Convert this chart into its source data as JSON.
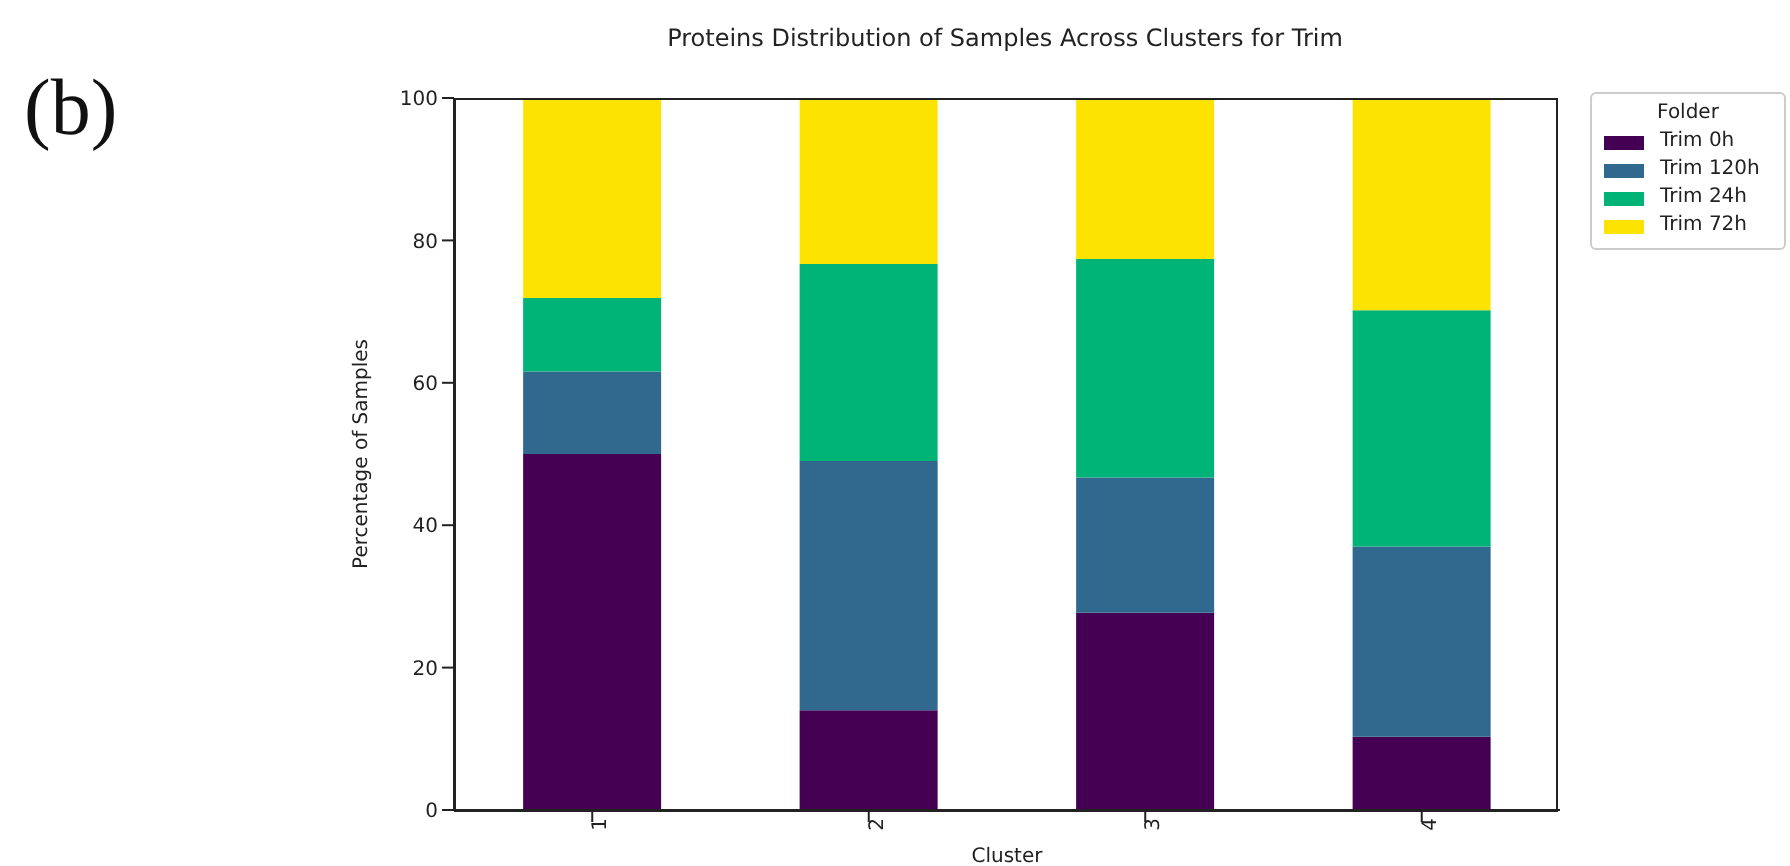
{
  "chart_data": {
    "type": "bar",
    "title": "Proteins Distribution of Samples Across Clusters for Trim",
    "xlabel": "Cluster",
    "ylabel": "Percentage of Samples",
    "legend_title": "Folder",
    "annotations": [
      "(b)"
    ],
    "categories": [
      "1",
      "2",
      "3",
      "4"
    ],
    "series": [
      {
        "name": "Trim 0h",
        "color": "#440154",
        "values": [
          50,
          14,
          27.7,
          10.3
        ]
      },
      {
        "name": "Trim 120h",
        "color": "#31688e",
        "values": [
          11.6,
          35,
          19,
          26.7
        ]
      },
      {
        "name": "Trim 24h",
        "color": "#00b477",
        "values": [
          10.3,
          27.7,
          30.7,
          33.2
        ]
      },
      {
        "name": "Trim 72h",
        "color": "#fde400",
        "values": [
          28.1,
          23.3,
          22.6,
          29.8
        ]
      }
    ],
    "stacked": true,
    "ylim": [
      0,
      100
    ],
    "yticks": [
      0,
      20,
      40,
      60,
      80,
      100
    ],
    "grid": false,
    "legend": "top right"
  }
}
